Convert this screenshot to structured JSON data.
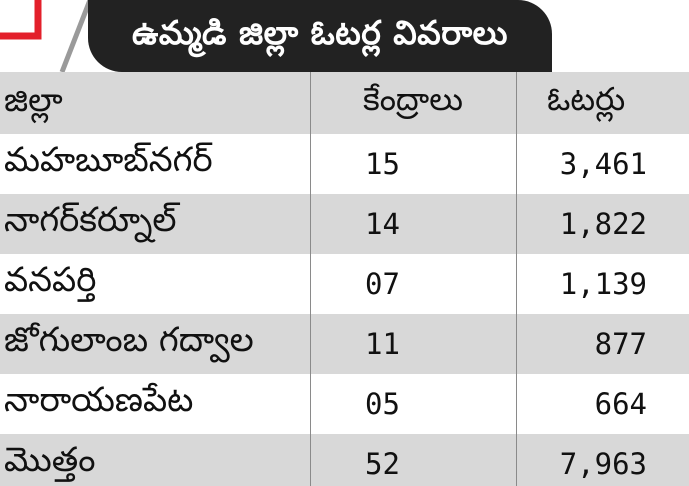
{
  "title": "ఉమ్మడి జిల్లా ఓటర్ల వివరాలు",
  "colors": {
    "title_background": "#222222",
    "title_text": "#ffffff",
    "accent": "#e3202b",
    "shaded_row": "#d8d8d8"
  },
  "table": {
    "headers": [
      "జిల్లా",
      "కేంద్రాలు",
      "ఓటర్లు"
    ],
    "rows": [
      {
        "district": "మహబూబ్‌నగర్",
        "centres": "15",
        "voters": "3,461"
      },
      {
        "district": "నాగర్‌కర్నూల్",
        "centres": "14",
        "voters": "1,822"
      },
      {
        "district": "వనపర్తి",
        "centres": "07",
        "voters": "1,139"
      },
      {
        "district": "జోగులాంబ గద్వాల",
        "centres": "11",
        "voters": "877"
      },
      {
        "district": "నారాయణపేట",
        "centres": "05",
        "voters": "664"
      }
    ],
    "total": {
      "label": "మొత్తం",
      "centres": "52",
      "voters": "7,963"
    }
  }
}
